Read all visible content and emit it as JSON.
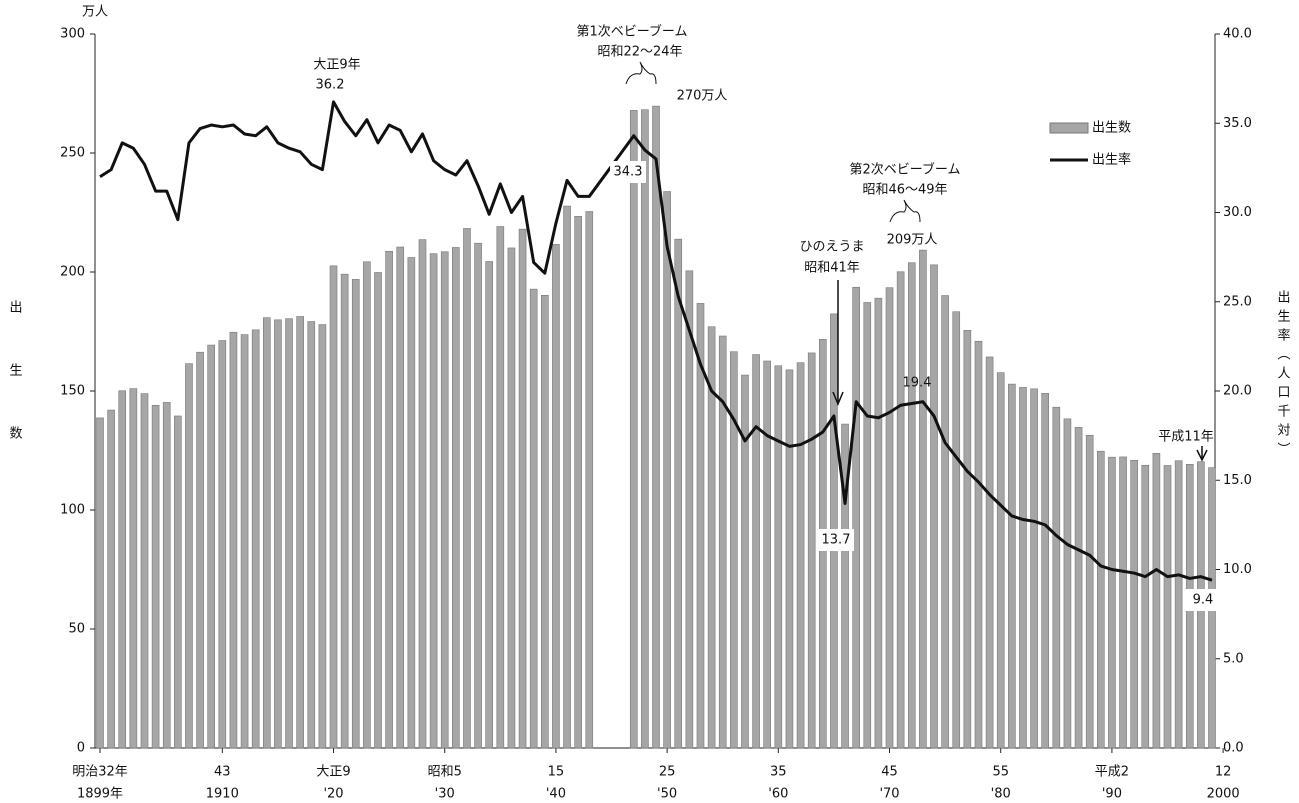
{
  "chart_data": {
    "type": "bar+line",
    "unit_label": "万人",
    "ylabel": "出生数",
    "y2label": "出生率（人口千対）",
    "x": [
      1899,
      1900,
      1901,
      1902,
      1903,
      1904,
      1905,
      1906,
      1907,
      1908,
      1909,
      1910,
      1911,
      1912,
      1913,
      1914,
      1915,
      1916,
      1917,
      1918,
      1919,
      1920,
      1921,
      1922,
      1923,
      1924,
      1925,
      1926,
      1927,
      1928,
      1929,
      1930,
      1931,
      1932,
      1933,
      1934,
      1935,
      1936,
      1937,
      1938,
      1939,
      1940,
      1941,
      1942,
      1943,
      1947,
      1948,
      1949,
      1950,
      1951,
      1952,
      1953,
      1954,
      1955,
      1956,
      1957,
      1958,
      1959,
      1960,
      1961,
      1962,
      1963,
      1964,
      1965,
      1966,
      1967,
      1968,
      1969,
      1970,
      1971,
      1972,
      1973,
      1974,
      1975,
      1976,
      1977,
      1978,
      1979,
      1980,
      1981,
      1982,
      1983,
      1984,
      1985,
      1986,
      1987,
      1988,
      1989,
      1990,
      1991,
      1992,
      1993,
      1994,
      1995,
      1996,
      1997,
      1998,
      1999
    ],
    "xlim": [
      1899,
      1999
    ],
    "xticks": [
      {
        "value": 1899,
        "label": "1899年",
        "era": "明治32年"
      },
      {
        "value": 1910,
        "label": "1910",
        "era": "43"
      },
      {
        "value": 1920,
        "label": "'20",
        "era": "大正9"
      },
      {
        "value": 1930,
        "label": "'30",
        "era": "昭和5"
      },
      {
        "value": 1940,
        "label": "'40",
        "era": "15"
      },
      {
        "value": 1950,
        "label": "'50",
        "era": "25"
      },
      {
        "value": 1960,
        "label": "'60",
        "era": "35"
      },
      {
        "value": 1970,
        "label": "'70",
        "era": "45"
      },
      {
        "value": 1980,
        "label": "'80",
        "era": "55"
      },
      {
        "value": 1990,
        "label": "'90",
        "era": "平成2"
      },
      {
        "value": 2000,
        "label": "2000",
        "era": "12"
      }
    ],
    "ylim": [
      0,
      300
    ],
    "yticks": [
      0,
      50,
      100,
      150,
      200,
      250,
      300
    ],
    "y2lim": [
      0,
      40
    ],
    "y2ticks": [
      {
        "value": 0,
        "label": "0.0"
      },
      {
        "value": 5,
        "label": "5.0"
      },
      {
        "value": 10,
        "label": "10.0"
      },
      {
        "value": 15,
        "label": "15.0"
      },
      {
        "value": 20,
        "label": "20.0"
      },
      {
        "value": 25,
        "label": "25.0"
      },
      {
        "value": 30,
        "label": "30.0"
      },
      {
        "value": 35,
        "label": "35.0"
      },
      {
        "value": 40,
        "label": "40.0"
      }
    ],
    "series": [
      {
        "name": "出生数",
        "type": "bar",
        "color": "#a6a6a6",
        "values": [
          138.7,
          142.0,
          150.1,
          151.0,
          148.9,
          144.0,
          145.2,
          139.5,
          161.5,
          166.3,
          169.3,
          171.2,
          174.7,
          173.7,
          175.7,
          180.8,
          179.9,
          180.4,
          181.3,
          179.2,
          177.9,
          202.6,
          199.1,
          196.9,
          204.3,
          199.8,
          208.7,
          210.5,
          206.1,
          213.6,
          207.7,
          208.5,
          210.3,
          218.3,
          212.1,
          204.4,
          219.1,
          210.1,
          218.0,
          192.8,
          190.2,
          211.6,
          227.7,
          223.4,
          225.4,
          267.9,
          268.2,
          269.7,
          233.8,
          213.8,
          200.5,
          186.8,
          177.0,
          173.1,
          166.5,
          156.7,
          165.3,
          162.6,
          160.6,
          158.9,
          161.9,
          166.0,
          171.7,
          182.4,
          136.1,
          193.6,
          187.2,
          189.0,
          193.4,
          200.1,
          203.9,
          209.2,
          203.0,
          190.1,
          183.3,
          175.5,
          170.9,
          164.3,
          157.7,
          152.9,
          151.5,
          150.9,
          149.0,
          143.2,
          138.3,
          134.7,
          131.4,
          124.7,
          122.2,
          122.3,
          120.9,
          118.8,
          123.8,
          118.7,
          120.7,
          119.2,
          120.3,
          117.8
        ]
      },
      {
        "name": "出生率",
        "type": "line",
        "axis": "y2",
        "color": "#111111",
        "values": [
          32.0,
          32.4,
          33.9,
          33.6,
          32.7,
          31.2,
          31.2,
          29.6,
          33.9,
          34.7,
          34.9,
          34.8,
          34.9,
          34.4,
          34.3,
          34.8,
          33.9,
          33.6,
          33.4,
          32.7,
          32.4,
          36.2,
          35.1,
          34.3,
          35.2,
          33.9,
          34.9,
          34.6,
          33.4,
          34.4,
          32.9,
          32.4,
          32.1,
          32.9,
          31.5,
          29.9,
          31.6,
          30.0,
          30.9,
          27.2,
          26.6,
          29.4,
          31.8,
          30.9,
          30.9,
          34.3,
          33.5,
          33.0,
          28.1,
          25.3,
          23.4,
          21.5,
          20.0,
          19.4,
          18.4,
          17.2,
          18.0,
          17.5,
          17.2,
          16.9,
          17.0,
          17.3,
          17.7,
          18.6,
          13.7,
          19.4,
          18.6,
          18.5,
          18.8,
          19.2,
          19.3,
          19.4,
          18.6,
          17.1,
          16.3,
          15.5,
          14.9,
          14.2,
          13.6,
          13.0,
          12.8,
          12.7,
          12.5,
          11.9,
          11.4,
          11.1,
          10.8,
          10.2,
          10.0,
          9.9,
          9.8,
          9.6,
          10.0,
          9.6,
          9.7,
          9.5,
          9.6,
          9.4
        ]
      }
    ],
    "annotations": [
      "大正9年",
      "36.2",
      "第1次ベビーブーム",
      "昭和22～24年",
      "270万人",
      "34.3",
      "第2次ベビーブーム",
      "昭和46～49年",
      "209万人",
      "ひのえうま",
      "昭和41年",
      "13.7",
      "19.4",
      "平成11年",
      "9.4"
    ]
  }
}
